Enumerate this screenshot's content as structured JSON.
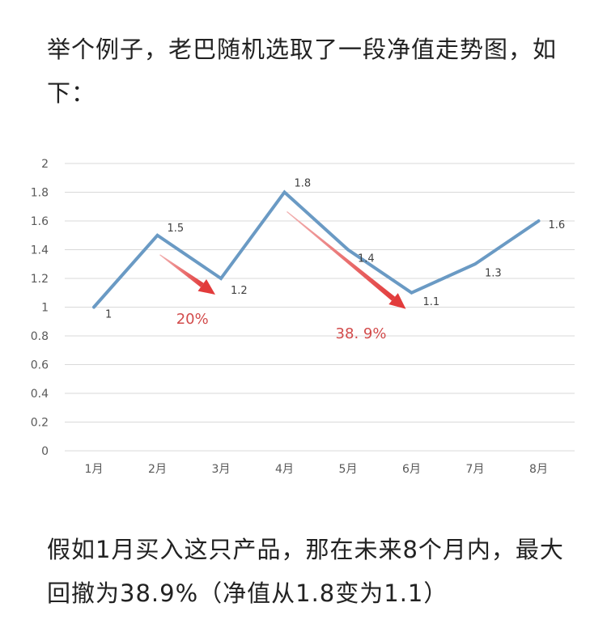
{
  "article": {
    "intro": "举个例子，老巴随机选取了一段净值走势图，如下：",
    "conclusion": "假如1月买入这只产品，那在未来8个月内，最大回撤为38.9%（净值从1.8变为1.1）"
  },
  "colors": {
    "line": "#6a9ac4",
    "arrow": "#e23b3b",
    "annotation": "#d24b4b",
    "grid": "#d9d9d9"
  },
  "chart_data": {
    "type": "line",
    "categories": [
      "1月",
      "2月",
      "3月",
      "4月",
      "5月",
      "6月",
      "7月",
      "8月"
    ],
    "series": [
      {
        "values": [
          1,
          1.5,
          1.2,
          1.8,
          1.4,
          1.1,
          1.3,
          1.6
        ]
      }
    ],
    "data_labels": [
      "1",
      "1.5",
      "1.2",
      "1.8",
      "1.4",
      "1.1",
      "1.3",
      "1.6"
    ],
    "y_ticks": [
      "0",
      "0.2",
      "0.4",
      "0.6",
      "0.8",
      "1",
      "1.2",
      "1.4",
      "1.6",
      "1.8",
      "2"
    ],
    "ylim": [
      0,
      2
    ],
    "grid": true,
    "legend": "none",
    "annotations": [
      {
        "text": "20%",
        "from_category": "2月",
        "to_category": "3月"
      },
      {
        "text": "38. 9%",
        "from_category": "4月",
        "to_category": "6月"
      }
    ]
  }
}
